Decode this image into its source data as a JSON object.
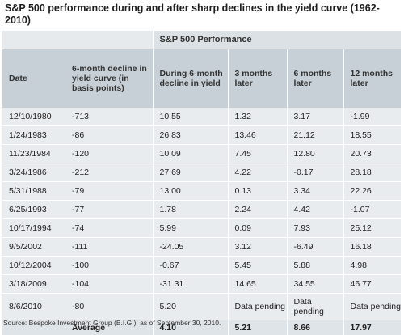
{
  "title": "S&P 500 performance during and after sharp declines in the yield curve (1962-2010)",
  "table": {
    "super_header": "S&P 500 Performance",
    "headers": [
      "Date",
      "6-month decline in yield curve (in basis points)",
      "During 6-month decline in yield",
      "3 months later",
      "6 months later",
      "12 months later"
    ],
    "rows": [
      [
        "12/10/1980",
        "-713",
        "10.55",
        "1.32",
        "3.17",
        "-1.99"
      ],
      [
        "1/24/1983",
        "-86",
        "26.83",
        "13.46",
        "21.12",
        "18.55"
      ],
      [
        "11/23/1984",
        "-120",
        "10.09",
        "7.45",
        "12.80",
        "20.73"
      ],
      [
        "3/24/1986",
        "-212",
        "27.69",
        "4.22",
        "-0.17",
        "28.18"
      ],
      [
        "5/31/1988",
        "-79",
        "13.00",
        "0.13",
        "3.34",
        "22.26"
      ],
      [
        "6/25/1993",
        "-77",
        "1.78",
        "2.24",
        "4.42",
        "-1.07"
      ],
      [
        "10/17/1994",
        "-74",
        "5.99",
        "0.09",
        "7.93",
        "25.12"
      ],
      [
        "9/5/2002",
        "-111",
        "-24.05",
        "3.12",
        "-6.49",
        "16.18"
      ],
      [
        "10/12/2004",
        "-100",
        "-0.67",
        "5.45",
        "5.88",
        "4.98"
      ],
      [
        "3/18/2009",
        "-104",
        "-31.31",
        "14.65",
        "34.55",
        "46.77"
      ],
      [
        "8/6/2010",
        "-80",
        "5.20",
        "Data pending",
        "Data pending",
        "Data pending"
      ]
    ],
    "average": [
      "",
      "Average",
      "4.10",
      "5.21",
      "8.66",
      "17.97"
    ]
  },
  "source": "Source: Bespoke Investment Group (B.I.G.), as of September 30, 2010."
}
